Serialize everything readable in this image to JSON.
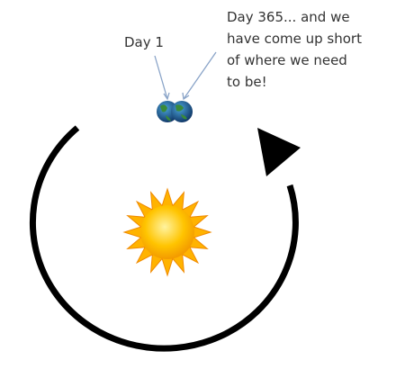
{
  "labels": {
    "day_start": "Day 1",
    "day_end": [
      "Day 365... and we",
      "have come up short",
      "of where we need",
      "to be!"
    ]
  }
}
